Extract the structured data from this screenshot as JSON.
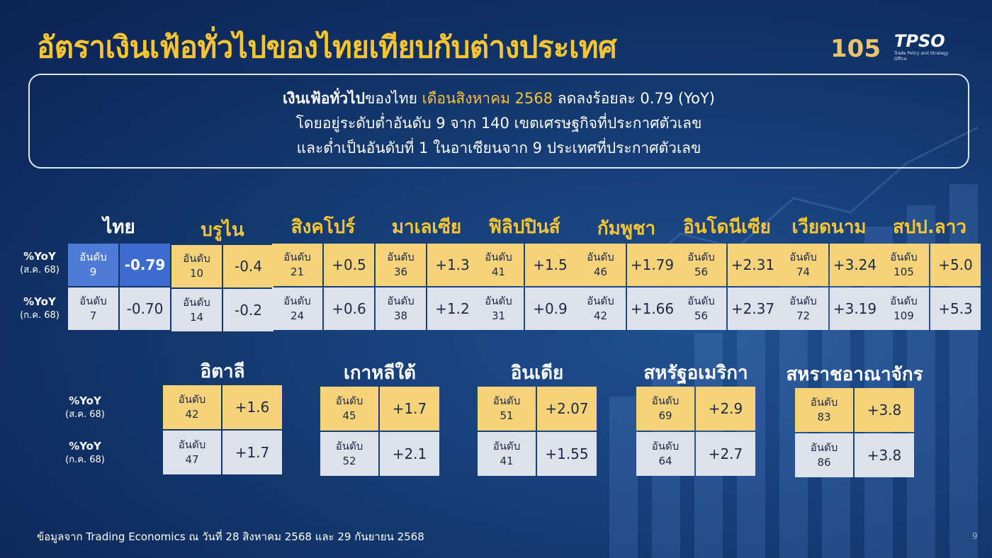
{
  "title": "อัตราเงินเฟ้อทั่วไปของไทยเทียบกับต่างประเทศ",
  "logos": {
    "anniversary": "105",
    "org": "TPSO",
    "org_sub": "Trade Policy and Strategy Office"
  },
  "summary": {
    "line1_bold": "เงินเฟ้อทั่วไป",
    "line1_a": "ของไทย ",
    "line1_highlight": "เดือนสิงหาคม 2568",
    "line1_b": " ลดลงร้อยละ 0.79 (YoY)",
    "line2": "โดยอยู่ระดับต่ำอันดับ 9 จาก 140 เขตเศรษฐกิจที่ประกาศตัวเลข",
    "line3": "และต่ำเป็นอันดับที่ 1 ในอาเซียนจาก 9 ประเทศที่ประกาศตัวเลข"
  },
  "row_labels_top": [
    {
      "main": "%YoY",
      "sub": "(ส.ค. 68)"
    },
    {
      "main": "%YoY",
      "sub": "(ก.ค. 68)"
    }
  ],
  "row_labels_bottom": [
    {
      "main": "%YoY",
      "sub": "(ส.ค. 68)"
    },
    {
      "main": "%YoY",
      "sub": "(ก.ค. 68)"
    }
  ],
  "rank_word": "อันดับ",
  "asean": [
    {
      "name": "ไทย",
      "aug": {
        "rank": "9",
        "value": "-0.79"
      },
      "jul": {
        "rank": "7",
        "value": "-0.70"
      }
    },
    {
      "name": "บรูไน",
      "aug": {
        "rank": "10",
        "value": "-0.4"
      },
      "jul": {
        "rank": "14",
        "value": "-0.2"
      }
    },
    {
      "name": "สิงคโปร์",
      "aug": {
        "rank": "21",
        "value": "+0.5"
      },
      "jul": {
        "rank": "24",
        "value": "+0.6"
      }
    },
    {
      "name": "มาเลเซีย",
      "aug": {
        "rank": "36",
        "value": "+1.3"
      },
      "jul": {
        "rank": "38",
        "value": "+1.2"
      }
    },
    {
      "name": "ฟิลิปปินส์",
      "aug": {
        "rank": "41",
        "value": "+1.5"
      },
      "jul": {
        "rank": "31",
        "value": "+0.9"
      }
    },
    {
      "name": "กัมพูชา",
      "aug": {
        "rank": "46",
        "value": "+1.79"
      },
      "jul": {
        "rank": "42",
        "value": "+1.66"
      }
    },
    {
      "name": "อินโดนีเซีย",
      "aug": {
        "rank": "56",
        "value": "+2.31"
      },
      "jul": {
        "rank": "56",
        "value": "+2.37"
      }
    },
    {
      "name": "เวียดนาม",
      "aug": {
        "rank": "74",
        "value": "+3.24"
      },
      "jul": {
        "rank": "72",
        "value": "+3.19"
      }
    },
    {
      "name": "สปป.ลาว",
      "aug": {
        "rank": "105",
        "value": "+5.0"
      },
      "jul": {
        "rank": "109",
        "value": "+5.3"
      }
    }
  ],
  "others": [
    {
      "name": "อิตาลี",
      "aug": {
        "rank": "42",
        "value": "+1.6"
      },
      "jul": {
        "rank": "47",
        "value": "+1.7"
      }
    },
    {
      "name": "เกาหลีใต้",
      "aug": {
        "rank": "45",
        "value": "+1.7"
      },
      "jul": {
        "rank": "52",
        "value": "+2.1"
      }
    },
    {
      "name": "อินเดีย",
      "aug": {
        "rank": "51",
        "value": "+2.07"
      },
      "jul": {
        "rank": "41",
        "value": "+1.55"
      }
    },
    {
      "name": "สหรัฐอเมริกา",
      "aug": {
        "rank": "69",
        "value": "+2.9"
      },
      "jul": {
        "rank": "64",
        "value": "+2.7"
      }
    },
    {
      "name": "สหราชอาณาจักร",
      "aug": {
        "rank": "83",
        "value": "+3.8"
      },
      "jul": {
        "rank": "86",
        "value": "+3.8"
      }
    }
  ],
  "footer": "ข้อมูลจาก Trading Economics ณ วันที่ 28 สิงหาคม 2568 และ 29 กันยายน 2568",
  "page_number": "9",
  "colors": {
    "title": "#f7c531",
    "gold_cell": "#f6d37a",
    "gray_cell": "#dde1ea",
    "thai_highlight": "#4f7bd6"
  }
}
